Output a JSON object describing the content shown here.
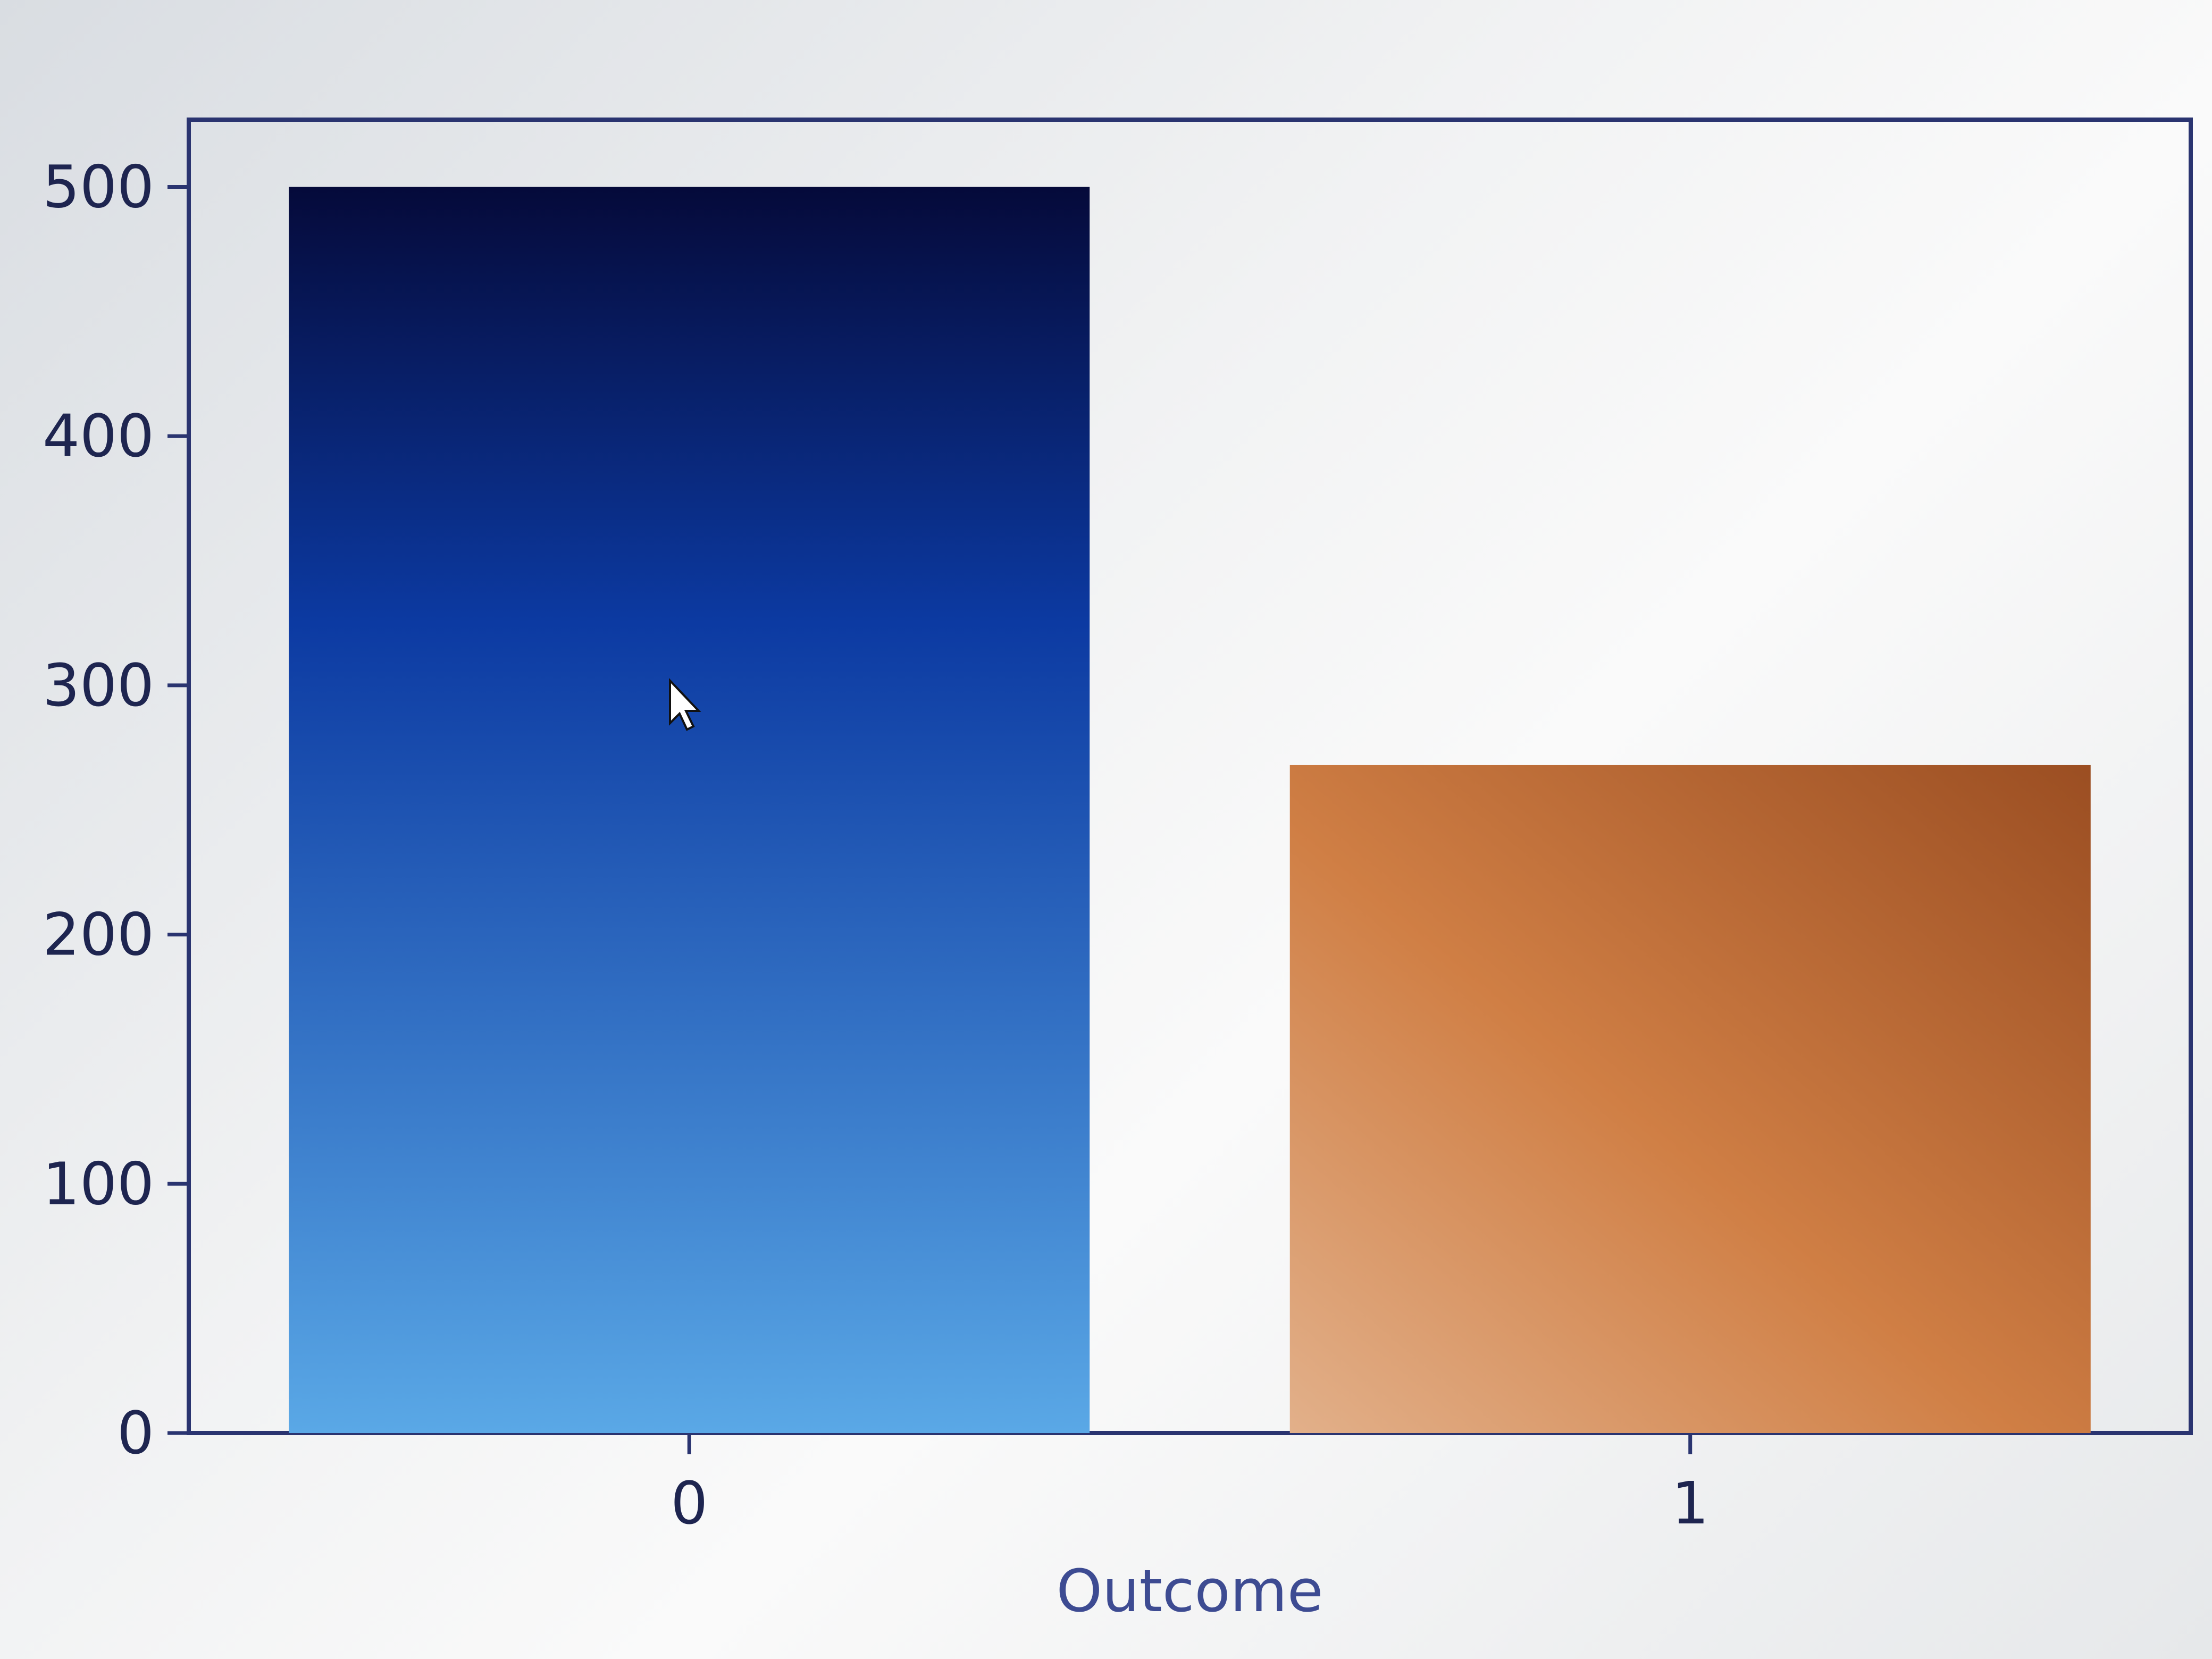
{
  "chart_data": {
    "type": "bar",
    "categories": [
      "0",
      "1"
    ],
    "values": [
      500,
      268
    ],
    "title": "",
    "xlabel": "Outcome",
    "ylabel": "",
    "ylim": [
      0,
      527
    ],
    "yticks": [
      0,
      100,
      200,
      300,
      400,
      500
    ],
    "grid": false,
    "legend": "none",
    "colors": {
      "bar_0_top": "#050a3a",
      "bar_0_mid": "#0c3aa2",
      "bar_0_bottom": "#5aa8e6",
      "bar_1_top": "#d07f45",
      "bar_1_bottom": "#e2b08a",
      "bar_1_shade": "#9b4e22",
      "axis": "#2a3470"
    }
  }
}
